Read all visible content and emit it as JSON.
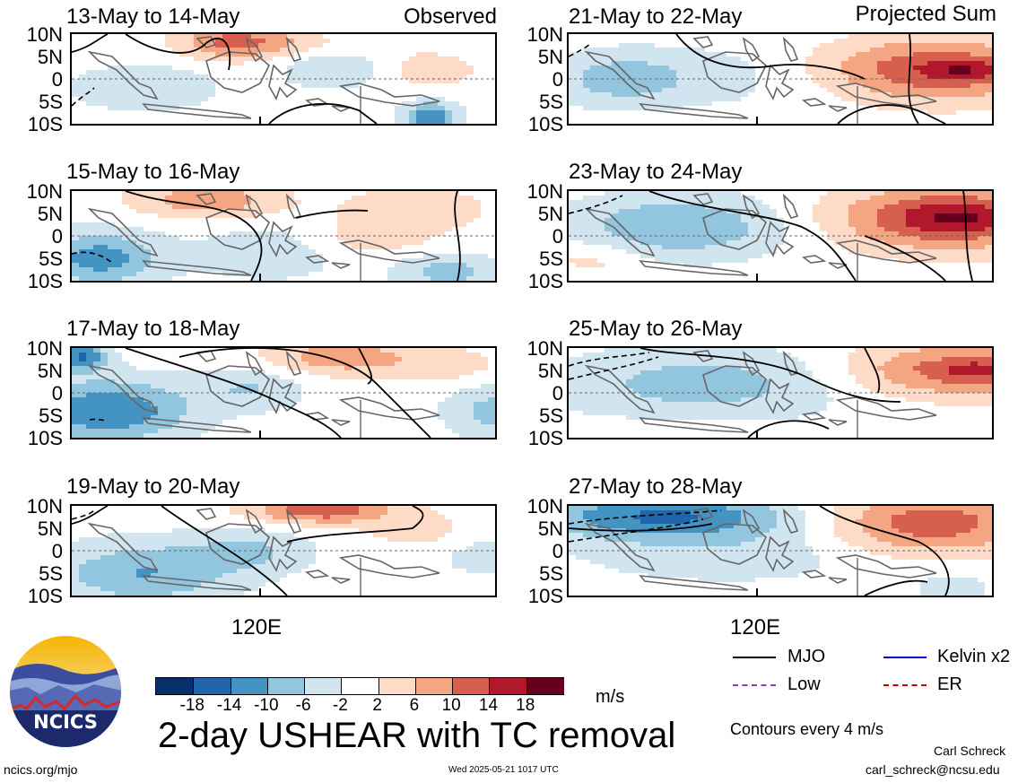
{
  "observed_label": "Observed",
  "projected_label": "Projected Sum",
  "lat_ticks": [
    "10N",
    "5N",
    "0",
    "5S",
    "10S"
  ],
  "lon_tick": "120E",
  "panels_left": [
    {
      "title": "13-May to 14-May"
    },
    {
      "title": "15-May to 16-May"
    },
    {
      "title": "17-May to 18-May"
    },
    {
      "title": "19-May to 20-May"
    }
  ],
  "panels_right": [
    {
      "title": "21-May to 22-May"
    },
    {
      "title": "23-May to 24-May"
    },
    {
      "title": "25-May to 26-May"
    },
    {
      "title": "27-May to 28-May"
    }
  ],
  "colorbar": {
    "colors": [
      "#08306b",
      "#2166ac",
      "#4393c3",
      "#92c5de",
      "#d1e5f0",
      "#ffffff",
      "#fddbc7",
      "#f4a582",
      "#d6604d",
      "#b2182b",
      "#67001f"
    ],
    "labels": [
      "-18",
      "-14",
      "-10",
      "-6",
      "-2",
      "2",
      "6",
      "10",
      "14",
      "18"
    ],
    "unit": "m/s"
  },
  "logo_text": "NCICS",
  "main_title": "2-day USHEAR with TC removal",
  "legend": {
    "items": [
      {
        "label": "MJO",
        "color": "#000000",
        "style": "solid"
      },
      {
        "label": "Kelvin x2",
        "color": "#0000cc",
        "style": "solid"
      },
      {
        "label": "Low",
        "color": "#9933cc",
        "style": "dashed"
      },
      {
        "label": "ER",
        "color": "#cc0000",
        "style": "dashed"
      }
    ],
    "contours_note": "Contours every 4 m/s"
  },
  "footer": {
    "website": "ncics.org/mjo",
    "timestamp": "Wed 2025-05-21 1017 UTC",
    "author": "Carl Schreck",
    "email": "carl_schreck@ncsu.edu"
  }
}
